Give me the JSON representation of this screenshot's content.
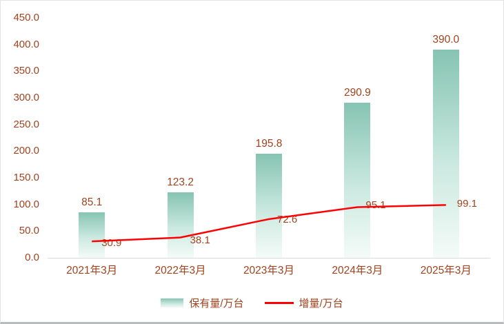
{
  "chart_data": {
    "type": "bar+line",
    "title": "",
    "categories": [
      "2021年3月",
      "2022年3月",
      "2023年3月",
      "2024年3月",
      "2025年3月"
    ],
    "series": [
      {
        "name": "保有量/万台",
        "type": "bar",
        "values": [
          85.1,
          123.2,
          195.8,
          290.9,
          390.0
        ]
      },
      {
        "name": "增量/万台",
        "type": "line",
        "values": [
          30.9,
          38.1,
          72.6,
          95.1,
          99.1
        ]
      }
    ],
    "ylim": [
      0,
      450
    ],
    "ytick_step": 50,
    "ytick_format_decimals": 1,
    "grid": "off",
    "legend_position": "bottom",
    "colors": {
      "bar_top": "#86C4B2",
      "bar_bottom": "#F4FBF8",
      "line": "#FF0000",
      "label_text": "#A0421E",
      "axis": "#D9D9D9"
    }
  }
}
